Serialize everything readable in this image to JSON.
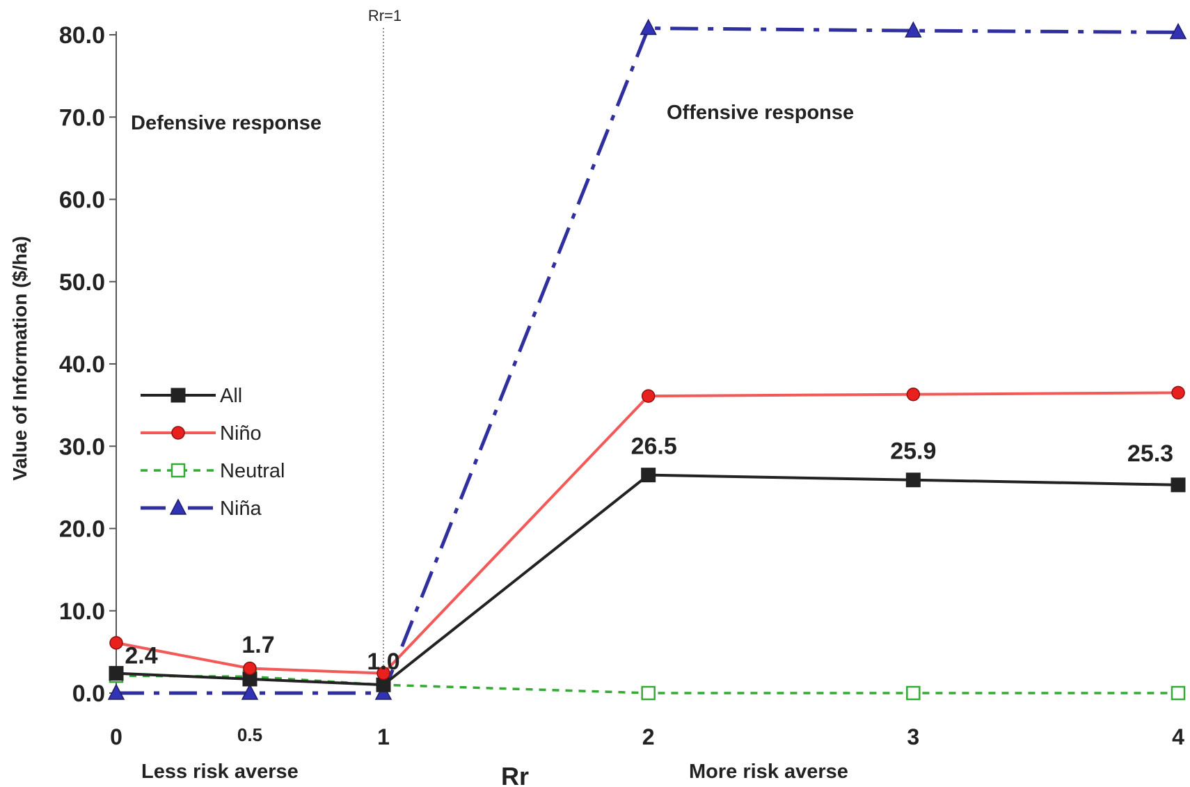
{
  "chart_data": {
    "type": "line",
    "title": "",
    "xlabel": "Rr",
    "ylabel": "Value of Information ($/ha)",
    "x": [
      0,
      0.5,
      1,
      2,
      3,
      4
    ],
    "x_tick_labels": [
      "0",
      "0.5",
      "1",
      "2",
      "3",
      "4"
    ],
    "ylim": [
      0,
      80
    ],
    "y_ticks": [
      "0.0",
      "10.0",
      "20.0",
      "30.0",
      "40.0",
      "50.0",
      "60.0",
      "70.0",
      "80.0"
    ],
    "grid": false,
    "legend_position": "left",
    "series": [
      {
        "name": "All",
        "values": [
          2.4,
          1.7,
          1.0,
          26.5,
          25.9,
          25.3
        ],
        "color": "#222222",
        "marker": "square",
        "dash": "solid"
      },
      {
        "name": "Niño",
        "values": [
          6.1,
          3.0,
          2.4,
          36.1,
          36.3,
          36.5
        ],
        "color": "#f25a5a",
        "marker": "circle",
        "dash": "solid"
      },
      {
        "name": "Neutral",
        "values": [
          2.1,
          2.0,
          1.0,
          0.0,
          0.0,
          0.0
        ],
        "color": "#33aa33",
        "marker": "open-square",
        "dash": "dashed"
      },
      {
        "name": "Niña",
        "values": [
          0.0,
          0.0,
          0.0,
          80.8,
          80.5,
          80.3
        ],
        "color": "#2f2f9e",
        "marker": "triangle",
        "dash": "dash-dot"
      }
    ],
    "data_labels": [
      {
        "series": "All",
        "index": 0,
        "text": "2.4"
      },
      {
        "series": "All",
        "index": 1,
        "text": "1.7"
      },
      {
        "series": "All",
        "index": 2,
        "text": "1.0"
      },
      {
        "series": "All",
        "index": 3,
        "text": "26.5"
      },
      {
        "series": "All",
        "index": 4,
        "text": "25.9"
      },
      {
        "series": "All",
        "index": 5,
        "text": "25.3"
      }
    ],
    "reference_line": {
      "x": 1,
      "label": "Rr=1"
    },
    "annotations": {
      "defensive": "Defensive response",
      "offensive": "Offensive response",
      "less_risk": "Less risk averse",
      "more_risk": "More risk averse"
    }
  }
}
